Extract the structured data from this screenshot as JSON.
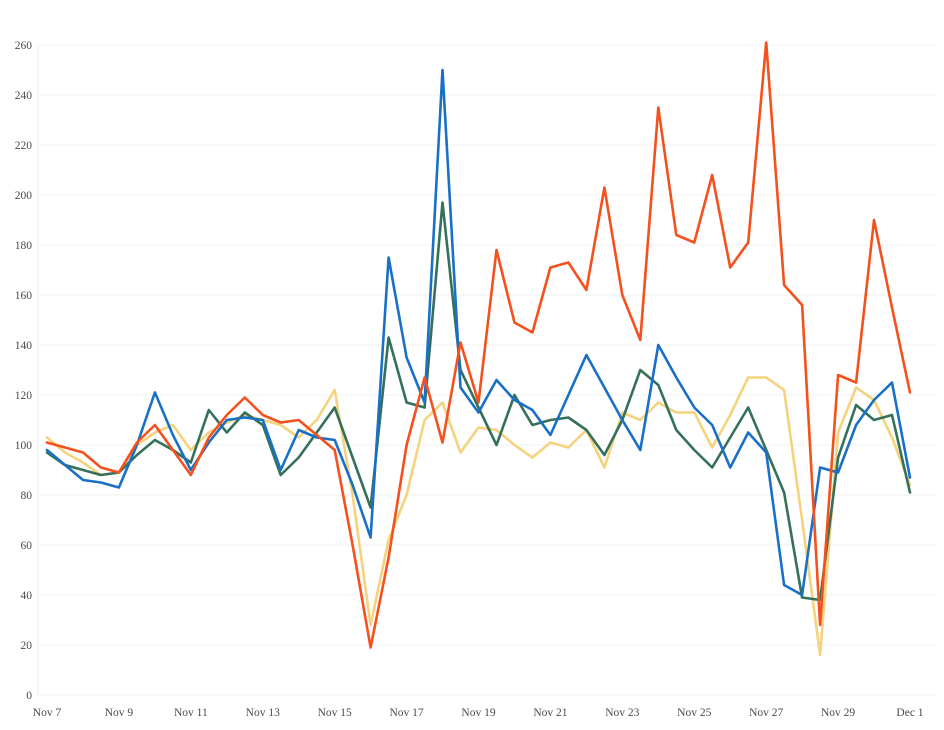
{
  "chart_data": {
    "type": "line",
    "title": "",
    "xlabel": "",
    "ylabel": "",
    "ylim": [
      0,
      260
    ],
    "y_ticks": [
      0,
      20,
      40,
      60,
      80,
      100,
      120,
      140,
      160,
      180,
      200,
      220,
      240,
      260
    ],
    "x_tick_labels": [
      "Nov 7",
      "Nov 9",
      "Nov 11",
      "Nov 13",
      "Nov 15",
      "Nov 17",
      "Nov 19",
      "Nov 21",
      "Nov 23",
      "Nov 25",
      "Nov 27",
      "Nov 29",
      "Dec 1"
    ],
    "x_start": "Nov 7",
    "x_end": "Dec 1",
    "points_per_day": 2,
    "grid": "horizontal",
    "legend": "none",
    "colors": {
      "background": "#ffffff",
      "gridline": "#f2f2f2",
      "axis_line": "#e9e9e9",
      "tick_text": "#4a4a4a",
      "series_blue": "#1a70c7",
      "series_orange": "#f4511e",
      "series_green": "#35715a",
      "series_yellow": "#f5d37e"
    },
    "series": [
      {
        "name": "yellow",
        "color": "#f5d37e",
        "values": [
          103,
          97,
          93,
          88,
          89,
          100,
          105,
          108,
          98,
          105,
          109,
          112,
          110,
          108,
          103,
          110,
          122,
          80,
          28,
          62,
          80,
          110,
          117,
          97,
          107,
          106,
          100,
          95,
          101,
          99,
          106,
          91,
          113,
          110,
          117,
          113,
          113,
          99,
          112,
          127,
          127,
          122,
          70,
          16,
          105,
          123,
          118,
          103,
          84
        ]
      },
      {
        "name": "green",
        "color": "#35715a",
        "values": [
          97,
          92,
          90,
          88,
          89,
          96,
          102,
          98,
          93,
          114,
          105,
          113,
          108,
          88,
          95,
          105,
          115,
          95,
          75,
          143,
          117,
          115,
          197,
          130,
          115,
          100,
          120,
          108,
          110,
          111,
          106,
          96,
          110,
          130,
          124,
          106,
          98,
          91,
          103,
          115,
          98,
          81,
          39,
          38,
          95,
          116,
          110,
          112,
          81
        ]
      },
      {
        "name": "blue",
        "color": "#1a70c7",
        "values": [
          98,
          92,
          86,
          85,
          83,
          100,
          121,
          104,
          90,
          101,
          110,
          111,
          110,
          90,
          106,
          103,
          102,
          84,
          63,
          175,
          135,
          117,
          250,
          123,
          113,
          126,
          118,
          114,
          104,
          120,
          136,
          123,
          110,
          98,
          140,
          127,
          115,
          108,
          91,
          105,
          97,
          44,
          40,
          91,
          89,
          108,
          118,
          125,
          87
        ]
      },
      {
        "name": "orange",
        "color": "#f4511e",
        "values": [
          101,
          99,
          97,
          91,
          89,
          101,
          108,
          98,
          88,
          103,
          112,
          119,
          112,
          109,
          110,
          104,
          98,
          60,
          19,
          55,
          100,
          127,
          101,
          141,
          117,
          178,
          149,
          145,
          171,
          173,
          162,
          203,
          160,
          142,
          235,
          184,
          181,
          208,
          171,
          181,
          261,
          164,
          156,
          28,
          128,
          125,
          190,
          155,
          121
        ]
      }
    ]
  }
}
